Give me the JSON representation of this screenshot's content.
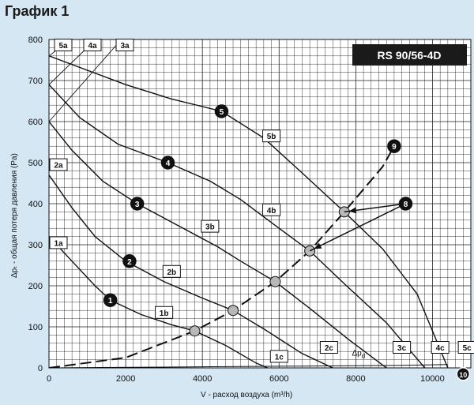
{
  "page": {
    "title": "График 1"
  },
  "chart_data": {
    "type": "line",
    "title": "График 1",
    "model": "RS 90/56-4D",
    "xlabel": "V    -  расход воздуха (m³/h)",
    "ylabel": "Δpₜ - общая потеря давления (Pa)",
    "xlim": [
      0,
      11000
    ],
    "ylim": [
      0,
      800
    ],
    "x_ticks": [
      "0",
      "2000",
      "4000",
      "6000",
      "8000",
      "10000"
    ],
    "y_ticks": [
      "0",
      "100",
      "200",
      "300",
      "400",
      "500",
      "600",
      "700",
      "800"
    ],
    "grid": true,
    "fan_curves": [
      {
        "start_label": "1a",
        "mid_label": "1b",
        "end_label": "1c",
        "points": [
          [
            0,
            320
          ],
          [
            600,
            260
          ],
          [
            1200,
            200
          ],
          [
            1600,
            165
          ],
          [
            2400,
            130
          ],
          [
            3200,
            105
          ],
          [
            3800,
            90
          ],
          [
            4600,
            55
          ],
          [
            5400,
            12
          ],
          [
            5700,
            0
          ]
        ]
      },
      {
        "start_label": "2a",
        "mid_label": "2b",
        "end_label": "2c",
        "points": [
          [
            0,
            470
          ],
          [
            600,
            390
          ],
          [
            1200,
            320
          ],
          [
            2000,
            260
          ],
          [
            3000,
            210
          ],
          [
            4000,
            170
          ],
          [
            4800,
            140
          ],
          [
            5600,
            95
          ],
          [
            6600,
            35
          ],
          [
            7400,
            0
          ]
        ]
      },
      {
        "start_label": "3a",
        "mid_label": "3b",
        "end_label": "3c",
        "points": [
          [
            0,
            600
          ],
          [
            600,
            530
          ],
          [
            1400,
            455
          ],
          [
            2300,
            400
          ],
          [
            3300,
            350
          ],
          [
            4400,
            295
          ],
          [
            5000,
            260
          ],
          [
            5900,
            210
          ],
          [
            6800,
            145
          ],
          [
            7800,
            70
          ],
          [
            8800,
            0
          ]
        ]
      },
      {
        "start_label": "4a",
        "mid_label": "4b",
        "end_label": "4c",
        "points": [
          [
            0,
            690
          ],
          [
            800,
            610
          ],
          [
            1800,
            545
          ],
          [
            3100,
            500
          ],
          [
            4200,
            455
          ],
          [
            5000,
            410
          ],
          [
            6000,
            340
          ],
          [
            6800,
            285
          ],
          [
            7700,
            205
          ],
          [
            8800,
            110
          ],
          [
            9800,
            0
          ]
        ]
      },
      {
        "start_label": "5a",
        "mid_label": "5b",
        "end_label": "5c",
        "points": [
          [
            0,
            760
          ],
          [
            1000,
            725
          ],
          [
            2000,
            690
          ],
          [
            3200,
            655
          ],
          [
            4500,
            625
          ],
          [
            5600,
            560
          ],
          [
            6600,
            475
          ],
          [
            7700,
            380
          ],
          [
            8700,
            290
          ],
          [
            9600,
            180
          ],
          [
            10400,
            0
          ]
        ]
      }
    ],
    "system_curve": {
      "label": "Δp_d",
      "points": [
        [
          0,
          0
        ],
        [
          2000,
          25
        ],
        [
          3800,
          90
        ],
        [
          4800,
          140
        ],
        [
          5900,
          210
        ],
        [
          6800,
          285
        ],
        [
          7700,
          380
        ],
        [
          8700,
          490
        ],
        [
          9000,
          540
        ]
      ]
    },
    "system_curve_base": {
      "points": [
        [
          0,
          0
        ],
        [
          3000,
          2
        ],
        [
          6000,
          4
        ],
        [
          9000,
          6
        ],
        [
          10400,
          8
        ]
      ]
    },
    "operating_points": [
      [
        3800,
        90
      ],
      [
        4800,
        140
      ],
      [
        5900,
        210
      ],
      [
        6800,
        285
      ],
      [
        7700,
        380
      ]
    ],
    "markers": [
      {
        "number": "1",
        "x": 1600,
        "y": 165
      },
      {
        "number": "2",
        "x": 2100,
        "y": 260
      },
      {
        "number": "3",
        "x": 2300,
        "y": 400
      },
      {
        "number": "4",
        "x": 3100,
        "y": 500
      },
      {
        "number": "5",
        "x": 4500,
        "y": 625
      },
      {
        "number": "9",
        "x": 9000,
        "y": 540
      },
      {
        "number": "8",
        "x": 9300,
        "y": 400
      },
      {
        "number": "10",
        "x": 10800,
        "y": -15
      }
    ],
    "colors": {
      "background": "#d4e7f3",
      "plot": "#ffffff",
      "line": "#111111",
      "model_box": "#1a1a1a",
      "operating_point": "#b8b8b8"
    }
  }
}
